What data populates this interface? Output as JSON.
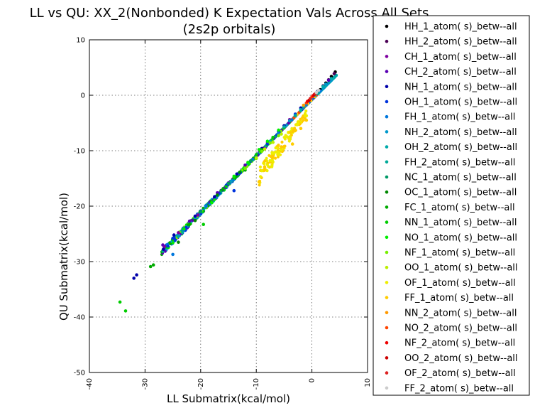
{
  "chart_data": {
    "type": "scatter",
    "title": "LL vs QU: XX_2(Nonbonded) K Expectation Vals Across All Sets",
    "subtitle": "(2s2p orbitals)",
    "xlabel": "LL Submatrix(kcal/mol)",
    "ylabel": "QU Submatrix(kcal/mol)",
    "xlim": [
      -40,
      10
    ],
    "ylim": [
      -50,
      10
    ],
    "xticks": [
      "-40",
      "-30",
      "-20",
      "-10",
      "0",
      "10"
    ],
    "yticks": [
      "10",
      "0",
      "-10",
      "-20",
      "-30",
      "-40",
      "-50"
    ],
    "grid": true,
    "legend_position": "outside right",
    "series": [
      {
        "name": "HH_1_atom( s)_betw--all",
        "color": "#000000",
        "points": [
          [
            1.5,
            1.0
          ],
          [
            2.5,
            2.2
          ],
          [
            3.5,
            3.4
          ],
          [
            4.2,
            4.2
          ]
        ]
      },
      {
        "name": "HH_2_atom( s)_betw--all",
        "color": "#4b0055",
        "points": [
          [
            2.0,
            1.7
          ],
          [
            3.0,
            2.8
          ],
          [
            4.0,
            3.9
          ]
        ]
      },
      {
        "name": "CH_1_atom( s)_betw--all",
        "color": "#7f00a0",
        "points": [
          [
            -26.5,
            -27.3
          ],
          [
            -24.0,
            -24.8
          ],
          [
            -20.5,
            -21.6
          ],
          [
            -15.0,
            -15.8
          ],
          [
            -8.0,
            -8.6
          ],
          [
            -4.0,
            -4.4
          ],
          [
            1.0,
            0.7
          ]
        ]
      },
      {
        "name": "CH_2_atom( s)_betw--all",
        "color": "#5a00b4",
        "points": [
          [
            -26.8,
            -27.0
          ],
          [
            -22.0,
            -22.7
          ],
          [
            -17.0,
            -17.6
          ],
          [
            -12.0,
            -12.6
          ],
          [
            -6.0,
            -6.6
          ],
          [
            3.0,
            2.7
          ]
        ]
      },
      {
        "name": "NH_1_atom( s)_betw--all",
        "color": "#0000aa",
        "points": [
          [
            -31.5,
            -32.4
          ],
          [
            -32.0,
            -33.0
          ],
          [
            -26.7,
            -27.8
          ],
          [
            -24.8,
            -25.2
          ],
          [
            -21.0,
            -21.8
          ],
          [
            -17.5,
            -18.3
          ],
          [
            -13.5,
            -14.2
          ],
          [
            -9.0,
            -9.6
          ],
          [
            -5.0,
            -5.5
          ],
          [
            -2.0,
            -2.3
          ]
        ]
      },
      {
        "name": "OH_1_atom( s)_betw--all",
        "color": "#0033dd",
        "points": [
          [
            -25.0,
            -25.8
          ],
          [
            -20.0,
            -20.9
          ],
          [
            -16.0,
            -17.1
          ],
          [
            -14.0,
            -17.2
          ],
          [
            -11.0,
            -11.9
          ],
          [
            -8.0,
            -8.8
          ],
          [
            -6.0,
            -6.5
          ],
          [
            -3.0,
            -3.4
          ]
        ]
      },
      {
        "name": "FH_1_atom( s)_betw--all",
        "color": "#0077dd",
        "points": [
          [
            -25.0,
            -28.7
          ],
          [
            -19.0,
            -20.0
          ],
          [
            -15.0,
            -15.9
          ],
          [
            -10.0,
            -10.7
          ],
          [
            -6.0,
            -6.9
          ],
          [
            -3.0,
            -3.6
          ],
          [
            0.0,
            -0.5
          ],
          [
            1.5,
            0.8
          ]
        ]
      },
      {
        "name": "NH_2_atom( s)_betw--all",
        "color": "#0099cc",
        "points": [
          [
            -7.5,
            -8.3
          ],
          [
            -4.0,
            -4.6
          ],
          [
            -1.0,
            -1.6
          ],
          [
            1.0,
            0.6
          ],
          [
            2.5,
            2.0
          ]
        ]
      },
      {
        "name": "OH_2_atom( s)_betw--all",
        "color": "#00aaaa",
        "points": [
          [
            -5.0,
            -5.7
          ],
          [
            -2.0,
            -2.6
          ],
          [
            0.5,
            0.0
          ],
          [
            2.0,
            1.6
          ],
          [
            3.5,
            3.0
          ]
        ]
      },
      {
        "name": "FH_2_atom( s)_betw--all",
        "color": "#00aa99",
        "points": [
          [
            -3.0,
            -3.7
          ],
          [
            -1.5,
            -2.1
          ],
          [
            1.0,
            0.3
          ]
        ]
      },
      {
        "name": "NC_1_atom( s)_betw--all",
        "color": "#009966",
        "points": [
          [
            -20.0,
            -21.0
          ],
          [
            -15.0,
            -15.9
          ],
          [
            -11.0,
            -11.8
          ],
          [
            -7.0,
            -7.7
          ]
        ]
      },
      {
        "name": "OC_1_atom( s)_betw--all",
        "color": "#008800",
        "points": [
          [
            -24.0,
            -26.5
          ],
          [
            -21.0,
            -22.6
          ],
          [
            -17.0,
            -18.0
          ],
          [
            -13.0,
            -13.9
          ],
          [
            -9.0,
            -9.9
          ]
        ]
      },
      {
        "name": "FC_1_atom( s)_betw--all",
        "color": "#00aa00",
        "points": [
          [
            -29.0,
            -30.9
          ],
          [
            -28.5,
            -30.6
          ],
          [
            -22.0,
            -23.3
          ],
          [
            -16.0,
            -17.0
          ],
          [
            -12.0,
            -13.5
          ],
          [
            -9.0,
            -9.8
          ]
        ]
      },
      {
        "name": "NN_1_atom( s)_betw--all",
        "color": "#00cc00",
        "points": [
          [
            -34.5,
            -37.3
          ],
          [
            -33.5,
            -38.9
          ],
          [
            -19.5,
            -23.3
          ],
          [
            -14.0,
            -14.9
          ],
          [
            -10.0,
            -10.7
          ],
          [
            -7.0,
            -7.6
          ]
        ]
      },
      {
        "name": "NO_1_atom( s)_betw--all",
        "color": "#00ee00",
        "points": [
          [
            -23.0,
            -24.1
          ],
          [
            -18.0,
            -19.4
          ],
          [
            -14.0,
            -14.6
          ],
          [
            -11.5,
            -12.1
          ],
          [
            -9.5,
            -9.8
          ],
          [
            -8.0,
            -8.3
          ],
          [
            -6.0,
            -6.3
          ]
        ]
      },
      {
        "name": "NF_1_atom( s)_betw--all",
        "color": "#77ee00",
        "points": [
          [
            -12.0,
            -13.2
          ],
          [
            -10.0,
            -11.4
          ],
          [
            -9.0,
            -10.1
          ],
          [
            -7.5,
            -8.6
          ],
          [
            -6.0,
            -7.3
          ]
        ]
      },
      {
        "name": "OO_1_atom( s)_betw--all",
        "color": "#bbee00",
        "points": [
          [
            -10.0,
            -11.3
          ],
          [
            -8.5,
            -9.7
          ],
          [
            -7.0,
            -8.5
          ],
          [
            -5.5,
            -7.0
          ]
        ]
      },
      {
        "name": "OF_1_atom( s)_betw--all",
        "color": "#eeee00",
        "points": [
          [
            -9.0,
            -13.6
          ],
          [
            -7.5,
            -11.8
          ],
          [
            -6.0,
            -10.3
          ],
          [
            -4.0,
            -7.5
          ],
          [
            -2.5,
            -5.0
          ],
          [
            -1.0,
            -3.7
          ]
        ]
      },
      {
        "name": "FF_1_atom( s)_betw--all",
        "color": "#ffcc00",
        "points": [
          [
            -9.5,
            -15.6
          ],
          [
            -8.5,
            -13.0
          ],
          [
            -7.0,
            -11.0
          ],
          [
            -5.5,
            -9.3
          ],
          [
            -3.5,
            -8.8
          ],
          [
            -2.0,
            -6.0
          ],
          [
            -1.0,
            -4.5
          ]
        ]
      },
      {
        "name": "NN_2_atom( s)_betw--all",
        "color": "#ff9900",
        "points": [
          [
            -1.5,
            -1.8
          ],
          [
            -0.5,
            -0.9
          ]
        ]
      },
      {
        "name": "NO_2_atom( s)_betw--all",
        "color": "#ff4400",
        "points": [
          [
            -1.0,
            -1.4
          ],
          [
            0.0,
            -0.3
          ]
        ]
      },
      {
        "name": "NF_2_atom( s)_betw--all",
        "color": "#ee0000",
        "points": [
          [
            -0.8,
            -1.1
          ],
          [
            0.2,
            -0.1
          ]
        ]
      },
      {
        "name": "OO_2_atom( s)_betw--all",
        "color": "#cc0000",
        "points": [
          [
            -0.5,
            -0.9
          ],
          [
            0.4,
            0.1
          ]
        ]
      },
      {
        "name": "OF_2_atom( s)_betw--all",
        "color": "#dd2222",
        "points": [
          [
            -0.3,
            -0.6
          ],
          [
            0.6,
            0.3
          ]
        ]
      },
      {
        "name": "FF_2_atom( s)_betw--all",
        "color": "#cccccc",
        "points": [
          [
            0.8,
            0.5
          ],
          [
            1.2,
            0.9
          ]
        ]
      }
    ]
  }
}
